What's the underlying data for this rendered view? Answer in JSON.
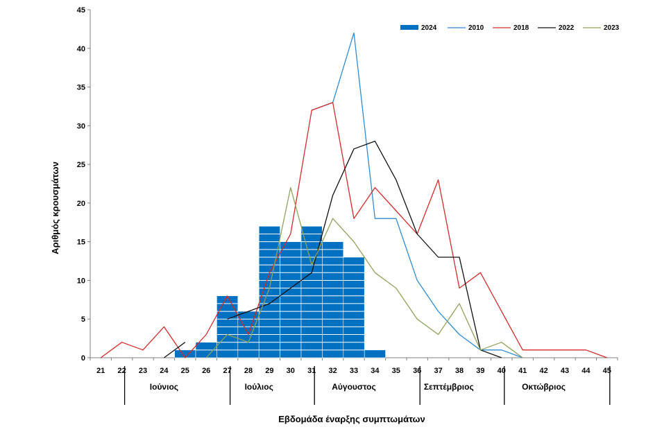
{
  "chart_data": {
    "type": "bar",
    "title": "",
    "xlabel": "Εβδομάδα έναρξης συμπτωμάτων",
    "ylabel": "Αριθμός κρουσμάτων",
    "ylim": [
      0,
      45
    ],
    "yticks": [
      0,
      5,
      10,
      15,
      20,
      25,
      30,
      35,
      40,
      45
    ],
    "categories": [
      "21",
      "22",
      "23",
      "24",
      "25",
      "26",
      "27",
      "28",
      "29",
      "30",
      "31",
      "32",
      "33",
      "34",
      "35",
      "36",
      "37",
      "38",
      "39",
      "40",
      "41",
      "42",
      "43",
      "44",
      "45"
    ],
    "months": [
      {
        "label": "Ιούνιος",
        "start_week": "22",
        "end_week": "26"
      },
      {
        "label": "Ιούλιος",
        "start_week": "27",
        "end_week": "30"
      },
      {
        "label": "Αύγουστος",
        "start_week": "31",
        "end_week": "35"
      },
      {
        "label": "Σεπτέμβριος",
        "start_week": "36",
        "end_week": "39"
      },
      {
        "label": "Οκτώβριος",
        "start_week": "40",
        "end_week": "44"
      }
    ],
    "grid": false,
    "legend_position": "top-right",
    "bars": {
      "name": "2024",
      "color": "#0070C0",
      "values": [
        0,
        0,
        0,
        0,
        1,
        2,
        8,
        6,
        17,
        15,
        17,
        15,
        13,
        1,
        0,
        0,
        0,
        0,
        0,
        0,
        0,
        0,
        0,
        0,
        0
      ]
    },
    "series": [
      {
        "name": "2010",
        "color": "#2E8BD6",
        "values": [
          null,
          null,
          null,
          null,
          null,
          null,
          null,
          null,
          null,
          null,
          32,
          33,
          42,
          18,
          18,
          10,
          6,
          3,
          1,
          1,
          0,
          null,
          null,
          null,
          null
        ]
      },
      {
        "name": "2018",
        "color": "#D42A2A",
        "values": [
          0,
          2,
          1,
          4,
          0,
          3,
          8,
          3,
          11,
          16,
          32,
          33,
          18,
          22,
          19,
          16,
          23,
          9,
          11,
          6,
          1,
          1,
          1,
          1,
          0
        ]
      },
      {
        "name": "2022",
        "color": "#111111",
        "values": [
          null,
          null,
          null,
          0,
          2,
          null,
          5,
          6,
          7,
          9,
          11,
          21,
          27,
          28,
          23,
          16,
          13,
          13,
          1,
          0,
          null,
          null,
          null,
          null,
          null
        ]
      },
      {
        "name": "2023",
        "color": "#8EA35B",
        "values": [
          null,
          null,
          null,
          null,
          null,
          0,
          3,
          2,
          9,
          22,
          12,
          18,
          15,
          11,
          9,
          5,
          3,
          7,
          1,
          2,
          0,
          null,
          null,
          null,
          null
        ]
      }
    ]
  }
}
